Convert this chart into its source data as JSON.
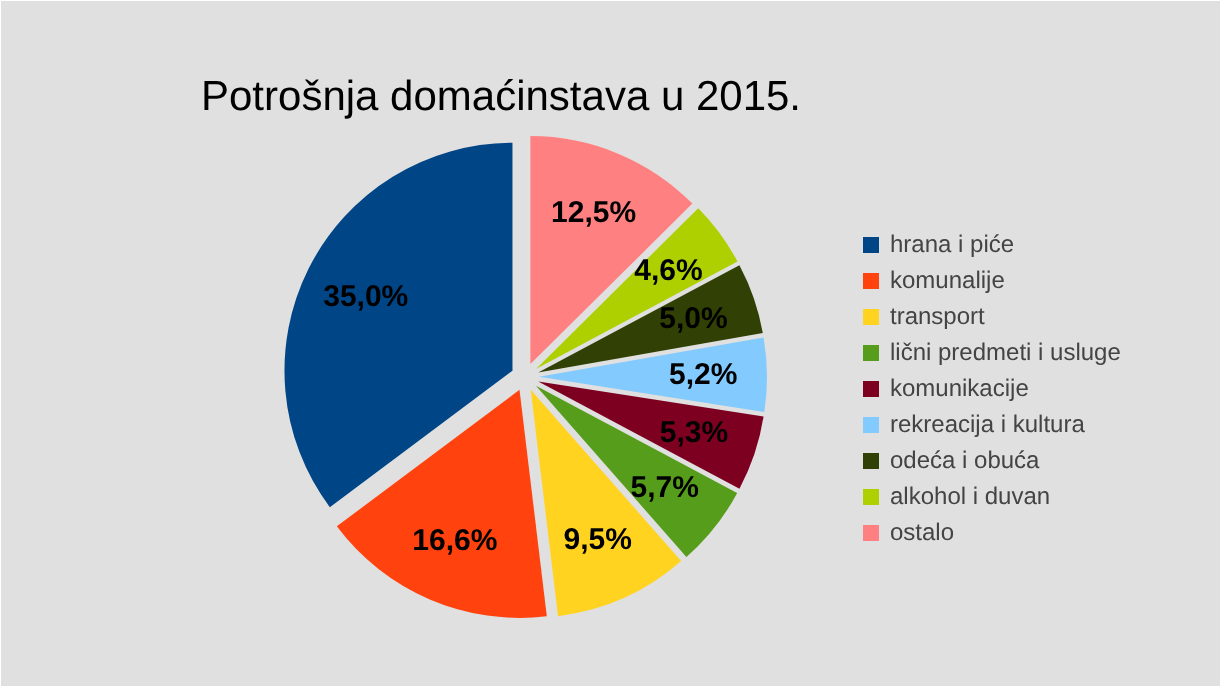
{
  "chart_data": {
    "type": "pie",
    "title": "Potrošnja domaćinstava u 2015.",
    "categories": [
      "hrana i piće",
      "komunalije",
      "transport",
      "lični predmeti i usluge",
      "komunikacije",
      "rekreacija i kultura",
      "odeća i obuća",
      "alkohol i duvan",
      "ostalo"
    ],
    "values": [
      35.0,
      16.6,
      9.5,
      5.7,
      5.3,
      5.2,
      5.0,
      4.6,
      12.5
    ],
    "value_labels": [
      "35,0%",
      "16,6%",
      "9,5%",
      "5,7%",
      "5,3%",
      "5,2%",
      "5,0%",
      "4,6%",
      "12,5%"
    ],
    "colors": [
      "#004586",
      "#ff420e",
      "#ffd320",
      "#579d1c",
      "#7e0021",
      "#83caff",
      "#314004",
      "#aecf00",
      "#ff8080"
    ],
    "legend": "right"
  }
}
